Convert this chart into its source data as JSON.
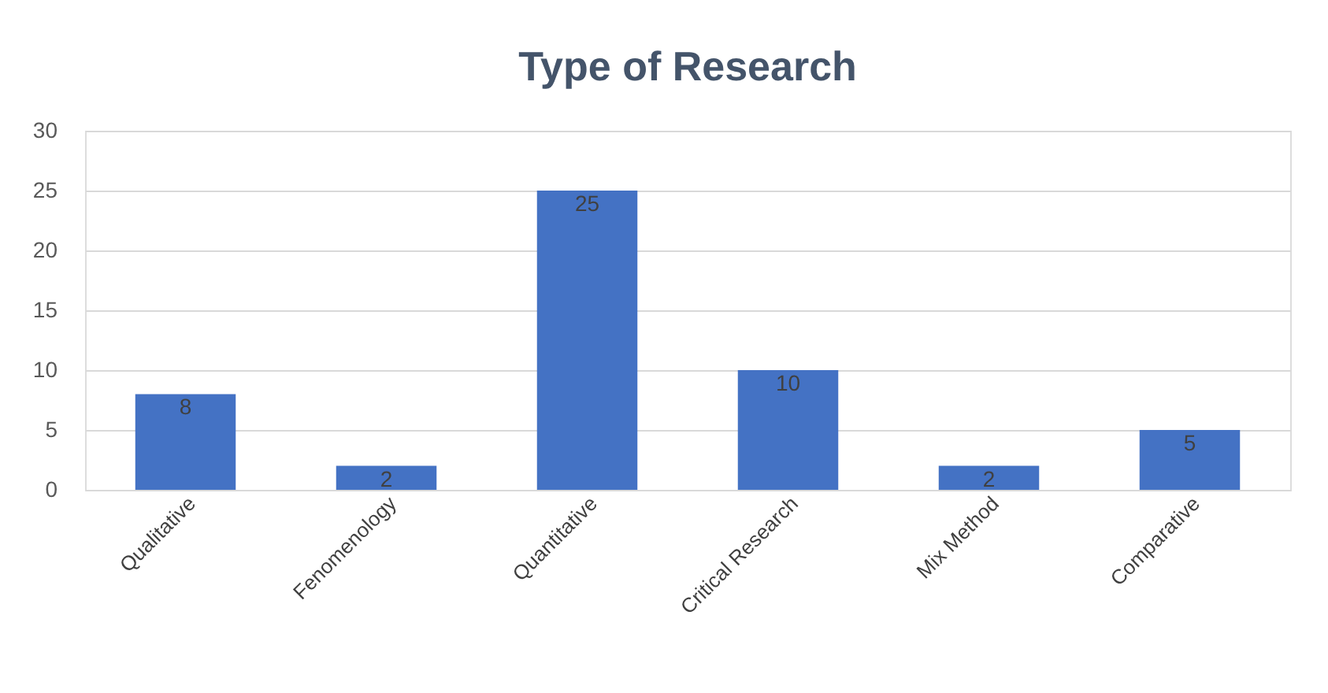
{
  "chart_data": {
    "type": "bar",
    "title": "Type of Research",
    "categories": [
      "Qualitative",
      "Fenomenology",
      "Quantitative",
      "Critical Research",
      "Mix Method",
      "Comparative"
    ],
    "values": [
      8,
      2,
      25,
      10,
      2,
      5
    ],
    "color": "#4472c4",
    "ylim": [
      0,
      30
    ],
    "yticks": [
      0,
      5,
      10,
      15,
      20,
      25,
      30
    ],
    "grid": "y",
    "data_labels": true
  }
}
